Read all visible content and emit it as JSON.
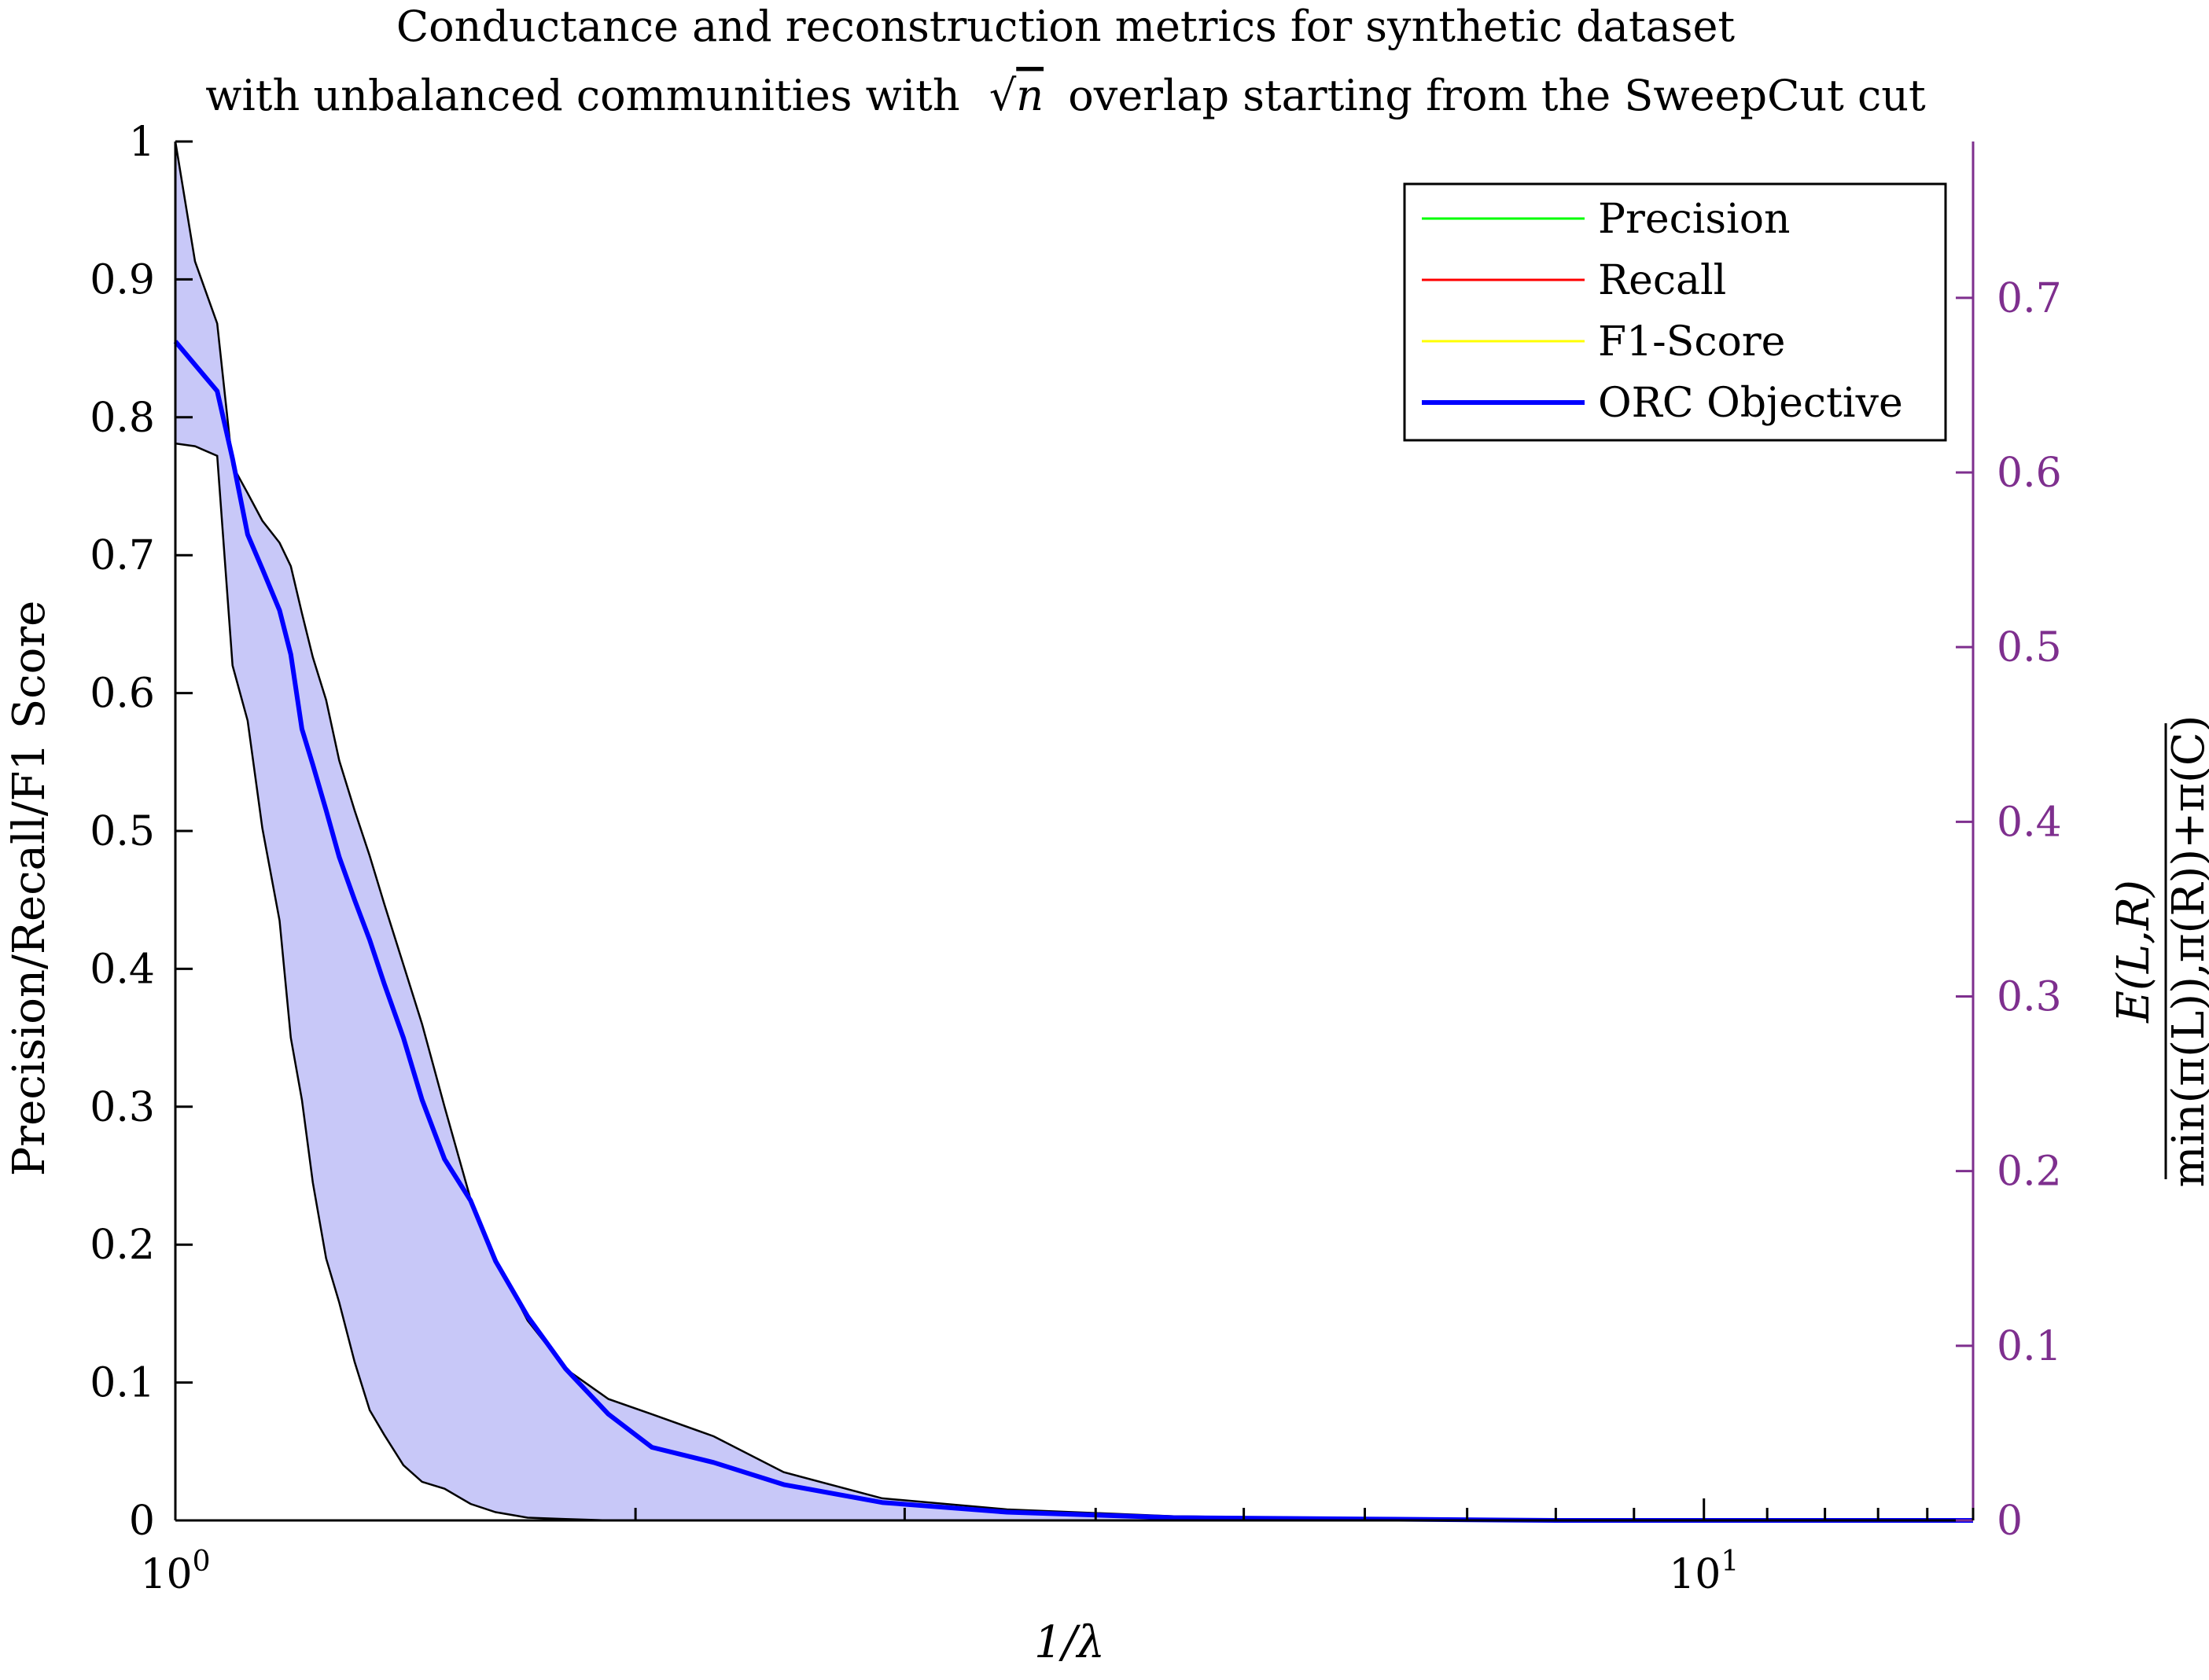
{
  "chart_data": {
    "type": "line",
    "title_line1": "Conductance and reconstruction metrics for synthetic dataset",
    "title_line2_before": "with unbalanced communities with",
    "title_sqrt_var": "n",
    "title_line2_after": "overlap starting from the SweepCut cut",
    "xlabel": "1/λ",
    "ylabel_left": "Precision/Recall/F1 Score",
    "ylabel_right": {
      "numerator": "E(L,R)",
      "denominator": "min(π(L)),π(R))+π(C)"
    },
    "x_scale": "log",
    "xlim": [
      1,
      15
    ],
    "x_tick_labels": [
      {
        "base": "10",
        "exp": "0"
      },
      {
        "base": "10",
        "exp": "1"
      }
    ],
    "ylim_left": [
      0,
      1
    ],
    "y_left_ticks": [
      "0",
      "0.1",
      "0.2",
      "0.3",
      "0.4",
      "0.5",
      "0.6",
      "0.7",
      "0.8",
      "0.9",
      "1"
    ],
    "ylim_right": [
      0,
      0.7895
    ],
    "y_right_ticks": [
      "0",
      "0.1",
      "0.2",
      "0.3",
      "0.4",
      "0.5",
      "0.6",
      "0.7"
    ],
    "grid": false,
    "legend_position": "top-right",
    "legend": [
      {
        "name": "Precision",
        "color": "#00ff00"
      },
      {
        "name": "Recall",
        "color": "#ff0000"
      },
      {
        "name": "F1-Score",
        "color": "#ffff00"
      },
      {
        "name": "ORC Objective",
        "color": "#0000ff"
      }
    ],
    "series": [
      {
        "name": "ORC Objective",
        "axis": "left",
        "color": "#0000ff",
        "x": [
          1.0,
          1.03,
          1.065,
          1.09,
          1.115,
          1.14,
          1.17,
          1.19,
          1.21,
          1.23,
          1.255,
          1.28,
          1.31,
          1.34,
          1.37,
          1.41,
          1.45,
          1.5,
          1.56,
          1.62,
          1.7,
          1.8,
          1.92,
          2.05,
          2.25,
          2.5,
          2.9,
          3.5,
          4.5,
          6.0,
          8.0,
          10.0,
          12.0,
          15.0
        ],
        "y": [
          0.855,
          0.838,
          0.819,
          0.77,
          0.715,
          0.69,
          0.66,
          0.628,
          0.574,
          0.548,
          0.515,
          0.481,
          0.45,
          0.421,
          0.389,
          0.35,
          0.305,
          0.262,
          0.232,
          0.188,
          0.148,
          0.11,
          0.077,
          0.053,
          0.042,
          0.026,
          0.013,
          0.006,
          0.002,
          0.001,
          0.0,
          0.0,
          0.0,
          0.0
        ],
        "upper": [
          1.0,
          0.913,
          0.868,
          0.765,
          0.745,
          0.725,
          0.709,
          0.692,
          0.658,
          0.626,
          0.595,
          0.551,
          0.515,
          0.482,
          0.447,
          0.403,
          0.36,
          0.3,
          0.233,
          0.19,
          0.145,
          0.11,
          0.088,
          0.077,
          0.061,
          0.035,
          0.016,
          0.008,
          0.003,
          0.001,
          0.0,
          0.0,
          0.0,
          0.0
        ],
        "lower": [
          0.781,
          0.779,
          0.772,
          0.62,
          0.58,
          0.502,
          0.435,
          0.35,
          0.305,
          0.245,
          0.19,
          0.158,
          0.115,
          0.08,
          0.062,
          0.04,
          0.028,
          0.023,
          0.012,
          0.006,
          0.002,
          0.001,
          0.0,
          0.0,
          0.0,
          0.0,
          0.0,
          0.0,
          0.0,
          0.0,
          0.0,
          0.0,
          0.0,
          0.0
        ]
      }
    ]
  },
  "colors": {
    "right_axis": "#7e2f8e",
    "band_fill": "#c8c8f8",
    "band_edge": "#000000",
    "line": "#0000ff"
  }
}
